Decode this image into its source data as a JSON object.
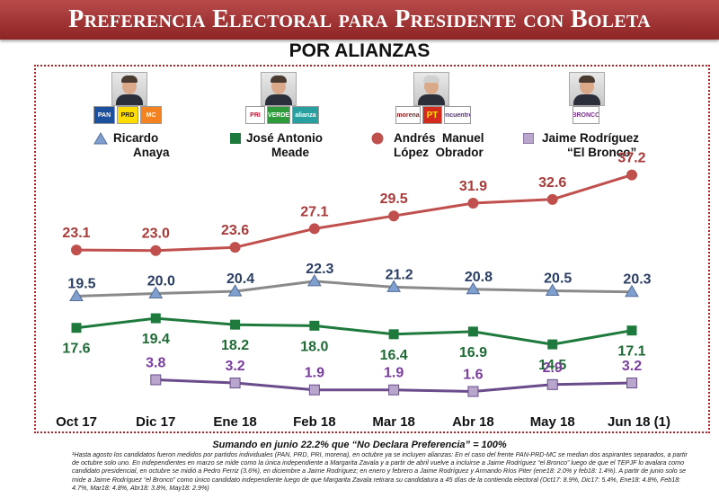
{
  "header": {
    "title": "Preferencia Electoral para Presidente con Boleta",
    "subtitle": "POR ALIANZAS"
  },
  "candidates": [
    {
      "name_line1": "Ricardo",
      "name_line2": "Anaya",
      "parties": [
        "PAN",
        "PRD",
        "MC"
      ]
    },
    {
      "name_line1": "José Antonio",
      "name_line2": "Meade",
      "parties": [
        "PRI",
        "VERDE",
        "alianza"
      ]
    },
    {
      "name_line1": "Andrés  Manuel",
      "name_line2": "López  Obrador",
      "parties": [
        "morena",
        "PT",
        "encuentro"
      ]
    },
    {
      "name_line1": "Jaime Rodríguez",
      "name_line2": "“El Bronco”",
      "parties": [
        "BRONCO"
      ]
    }
  ],
  "chart_data": {
    "type": "line",
    "categories": [
      "Oct 17",
      "Dic 17",
      "Ene 18",
      "Feb 18",
      "Mar 18",
      "Abr 18",
      "May 18",
      "Jun 18 (1)"
    ],
    "ylim": [
      0,
      40
    ],
    "grid": false,
    "legend": "top",
    "series": [
      {
        "name": "Andrés  Manuel López  Obrador",
        "color": "#c0504d",
        "marker": "circle",
        "values": [
          23.1,
          23.0,
          23.6,
          27.1,
          29.5,
          31.9,
          32.6,
          37.2
        ],
        "labels": [
          "23.1",
          "23.0",
          "23.6",
          "27.1",
          "29.5",
          "31.9",
          "32.6",
          "37.2"
        ]
      },
      {
        "name": "Ricardo Anaya",
        "color": "#8c8c8c",
        "marker": "triangle",
        "values": [
          19.5,
          20.0,
          20.4,
          22.3,
          21.2,
          20.8,
          20.5,
          20.3
        ],
        "labels": [
          "19.5",
          "20.0",
          "20.4",
          "22.3",
          "21.2",
          "20.8",
          "20.5",
          "20.3"
        ]
      },
      {
        "name": "José Antonio Meade",
        "color": "#1e7a3c",
        "marker": "square",
        "values": [
          17.6,
          19.4,
          18.2,
          18.0,
          16.4,
          16.9,
          14.5,
          17.1
        ],
        "labels": [
          "17.6",
          "19.4",
          "18.2",
          "18.0",
          "16.4",
          "16.9",
          "14.5",
          "17.1"
        ]
      },
      {
        "name": "Jaime Rodríguez “El Bronco”",
        "color": "#6a4c8c",
        "marker": "square",
        "values": [
          null,
          3.8,
          3.2,
          1.9,
          1.9,
          1.6,
          2.9,
          3.2
        ],
        "labels": [
          "",
          "3.8",
          "3.2",
          "1.9",
          "1.9",
          "1.6",
          "2.9",
          "3.2"
        ]
      }
    ]
  },
  "footer": {
    "summary": "Sumando  en  junio 22.2% que “No Declara Preferencia” = 100%",
    "notes": "¹Hasta agosto los candidatos fueron medidos por partidos individuales (PAN, PRD, PRI, morena), en octubre ya se incluyen alianzas: En el caso del frente PAN-PRD-MC se median dos aspirantes separados, a partir de octubre solo uno. En independientes en marzo se mide como la única independiente a Margarita Zavala y a partir de abril vuelve a incluirse a Jaime Rodríguez “el Bronco” luego de que el TEPJF lo avalara como candidato presidencial, en octubre se midió a Pedro Ferriz (3.6%), en diciembre a Jaime Rodríguez; en enero y febrero a Jaime Rodríguez y Armando Ríos Piter (ene18: 2.0% y feb18: 1.4%).   A partir de junio solo se mide a Jaime Rodríguez “el Bronco” como único candidato independiente luego de que Margarita Zavala retirara su candidatura a 45 días de la contienda electoral (Oct17: 8.9%, Dic17: 5.4%, Ene18: 4.8%, Feb18: 4.7%, Mar18: 4.8%, Abr18: 3.8%, May18: 2.9%)"
  }
}
